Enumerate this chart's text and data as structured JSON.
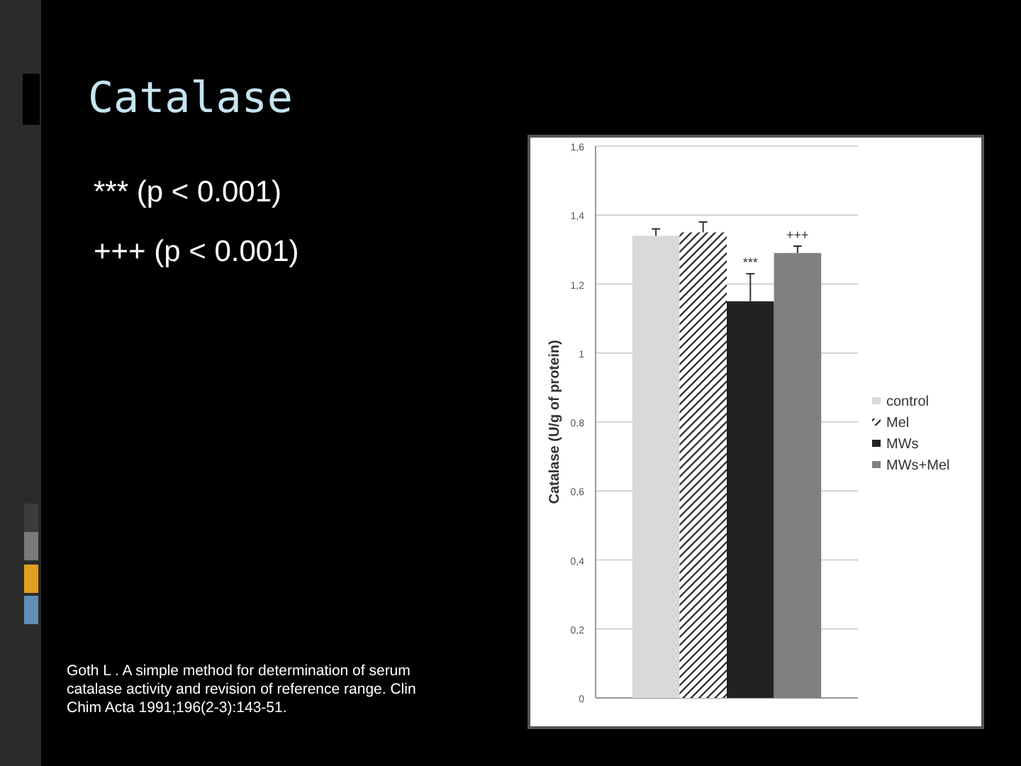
{
  "chart_data": {
    "type": "bar",
    "title": "Catalase",
    "categories": [
      null
    ],
    "series": [
      {
        "name": "control",
        "color": "#d9d9d9",
        "values": [
          1.34
        ],
        "errors": [
          0.02
        ]
      },
      {
        "name": "Mel",
        "color": "#222222",
        "values": [
          1.35
        ],
        "errors": [
          0.03
        ]
      },
      {
        "name": "MWs",
        "color": "#222222",
        "values": [
          1.15
        ],
        "errors": [
          0.08
        ],
        "value_labels": [
          "***"
        ]
      },
      {
        "name": "MWs+Mel",
        "color": "#808080",
        "values": [
          1.29
        ],
        "errors": [
          0.02
        ],
        "value_labels": [
          "+++"
        ]
      }
    ],
    "ylabel": "Catalase (U/g of protein)",
    "ylim": [
      0,
      1.6
    ],
    "yticks": [
      0,
      {
        "value": 0.2,
        "label": "0,2"
      },
      {
        "value": 0.4,
        "label": "0,4"
      },
      {
        "value": 0.6,
        "label": "0,6"
      },
      {
        "value": 0.8,
        "label": "0,8"
      },
      1,
      {
        "value": 1.2,
        "label": "1,2"
      },
      {
        "value": 1.4,
        "label": "1,4"
      },
      {
        "value": 1.6,
        "label": "1,6"
      }
    ],
    "grid": "y",
    "legend": "right",
    "annotations": [
      "*** (p < 0.001)",
      "+++ (p < 0.001)",
      "Goth L . A simple method for determination of serum catalase activity and revision of reference range. Clin Chim Acta 1991;196(2-3):143-51."
    ]
  }
}
